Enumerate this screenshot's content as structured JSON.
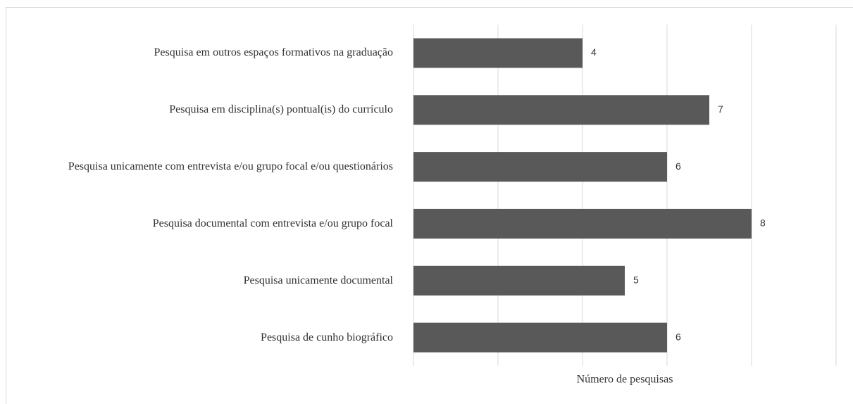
{
  "chart_data": {
    "type": "barh",
    "categories": [
      "Pesquisa em outros espaços formativos na graduação",
      "Pesquisa em disciplina(s) pontual(is) do currículo",
      "Pesquisa unicamente com entrevista e/ou grupo focal e/ou questionários",
      "Pesquisa documental com entrevista e/ou grupo focal",
      "Pesquisa unicamente documental",
      "Pesquisa de cunho biográfico"
    ],
    "values": [
      4,
      7,
      6,
      8,
      5,
      6
    ],
    "color": "#595959",
    "xlabel": "Número de pesquisas",
    "xlim": [
      0,
      10
    ],
    "xticks": [
      0,
      2,
      4,
      6,
      8,
      10
    ],
    "grid": true
  }
}
